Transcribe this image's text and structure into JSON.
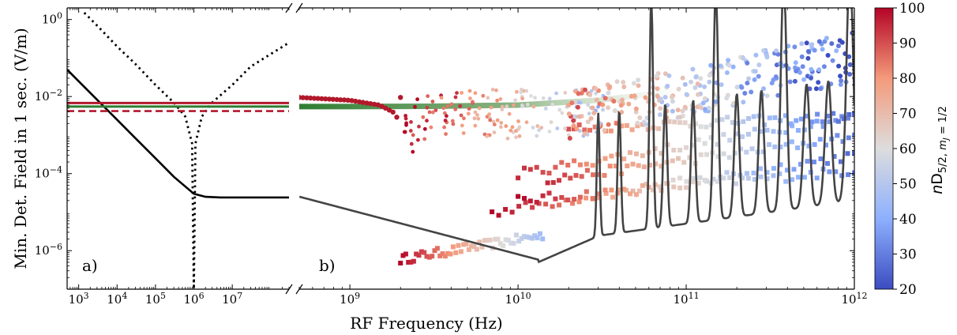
{
  "chart_data": {
    "type": "scatter",
    "xlabel": "RF Frequency (Hz)",
    "ylabel": "Min. Det. Field in 1 sec. (V/m)",
    "yscale": "log",
    "xscale": "log",
    "ylim": [
      1e-07,
      2
    ],
    "panels": [
      {
        "label": "a)",
        "xlim": [
          500,
          300000000
        ],
        "x_tick_labels": [
          "10^3",
          "10^4",
          "10^5",
          "10^6",
          "10^7"
        ],
        "series": [
          {
            "name": "",
            "style": "solid-black",
            "x": [
              500,
              1000,
              3000,
              10000,
              30000,
              100000,
              300000,
              1000000,
              2000000,
              5000000,
              10000000,
              30000000,
              300000000
            ],
            "y": [
              0.05,
              0.025,
              0.0083,
              0.0025,
              0.00083,
              0.00025,
              8.3e-05,
              3e-05,
              2.5e-05,
              2.4e-05,
              2.4e-05,
              2.4e-05,
              2.4e-05
            ]
          },
          {
            "name": "",
            "style": "dotted-black",
            "x": [
              1400,
              3000,
              10000,
              30000,
              100000,
              300000,
              600000,
              900000,
              1000000,
              1100000,
              1600000,
              3000000,
              10000000,
              30000000,
              300000000
            ],
            "y": [
              1.5,
              0.7,
              0.2,
              0.07,
              0.02,
              0.007,
              0.003,
              0.0006,
              1e-07,
              0.0006,
              0.003,
              0.007,
              0.02,
              0.06,
              0.25
            ]
          },
          {
            "name": "",
            "style": "solid-red",
            "x": [
              500,
              300000000
            ],
            "y": [
              0.0068,
              0.0068
            ]
          },
          {
            "name": "",
            "style": "solid-green",
            "x": [
              500,
              300000000
            ],
            "y": [
              0.0055,
              0.0055
            ]
          },
          {
            "name": "",
            "style": "dashed-red",
            "x": [
              500,
              300000000
            ],
            "y": [
              0.0042,
              0.0042
            ]
          }
        ]
      },
      {
        "label": "b)",
        "xlim": [
          500000000,
          1000000000000
        ],
        "x_tick_labels": [
          "10^9",
          "10^10",
          "10^11",
          "10^12"
        ],
        "series": [
          {
            "name": "",
            "style": "dark-gray-line",
            "x": [
              500000000,
              1000000000,
              2000000000,
              5000000000,
              10000000000,
              13000000000,
              20000000000,
              25000000000,
              30000000000,
              40000000000,
              60000000000,
              100000000000,
              300000000000,
              1000000000000
            ],
            "y": [
              2.5e-05,
              1.2e-05,
              5e-06,
              1.4e-06,
              6e-07,
              5e-07,
              8e-07,
              1.5e-06,
              3e-06,
              1e-06,
              1.0,
              5e-06,
              2e-05,
              8e-05
            ]
          },
          {
            "name": "",
            "style": "green-band",
            "x": [
              500000000,
              1000000000,
              3000000000,
              10000000000,
              30000000000,
              100000000000
            ],
            "y": [
              0.0055,
              0.0055,
              0.0056,
              0.006,
              0.008,
              0.015
            ]
          },
          {
            "name": "",
            "style": "red-curve",
            "x": [
              500000000,
              1000000000,
              1500000000,
              1800000000,
              1950000000,
              2000000000
            ],
            "y": [
              0.0095,
              0.008,
              0.006,
              0.004,
              0.0025,
              0.0015
            ]
          }
        ],
        "scatter_tracks": [
          {
            "x0": 2000000000,
            "x1": 14000000000,
            "y0": 6e-07,
            "y1": 2.5e-06,
            "c0": 100,
            "c1": 45
          },
          {
            "x0": 7000000000,
            "x1": 1000000000000,
            "y0": 1e-05,
            "y1": 0.0003,
            "c0": 100,
            "c1": 25
          },
          {
            "x0": 10000000000,
            "x1": 1000000000000,
            "y0": 2e-05,
            "y1": 0.00012,
            "c0": 100,
            "c1": 30
          },
          {
            "x0": 15000000000,
            "x1": 1000000000000,
            "y0": 7e-05,
            "y1": 0.0009,
            "c0": 95,
            "c1": 30
          },
          {
            "x0": 10000000000,
            "x1": 1000000000000,
            "y0": 0.0001,
            "y1": 0.003,
            "c0": 95,
            "c1": 30
          },
          {
            "x0": 20000000000,
            "x1": 1000000000000,
            "y0": 0.0015,
            "y1": 0.003,
            "c0": 90,
            "c1": 25
          }
        ]
      }
    ],
    "colorbar": {
      "label": "nD_{5/2, m_J = 1/2}",
      "range": [
        20,
        100
      ],
      "ticks": [
        "20",
        "30",
        "40",
        "50",
        "60",
        "70",
        "80",
        "90",
        "100"
      ],
      "colors": [
        "#3b4cc0",
        "#dddddd",
        "#b40426"
      ]
    }
  }
}
